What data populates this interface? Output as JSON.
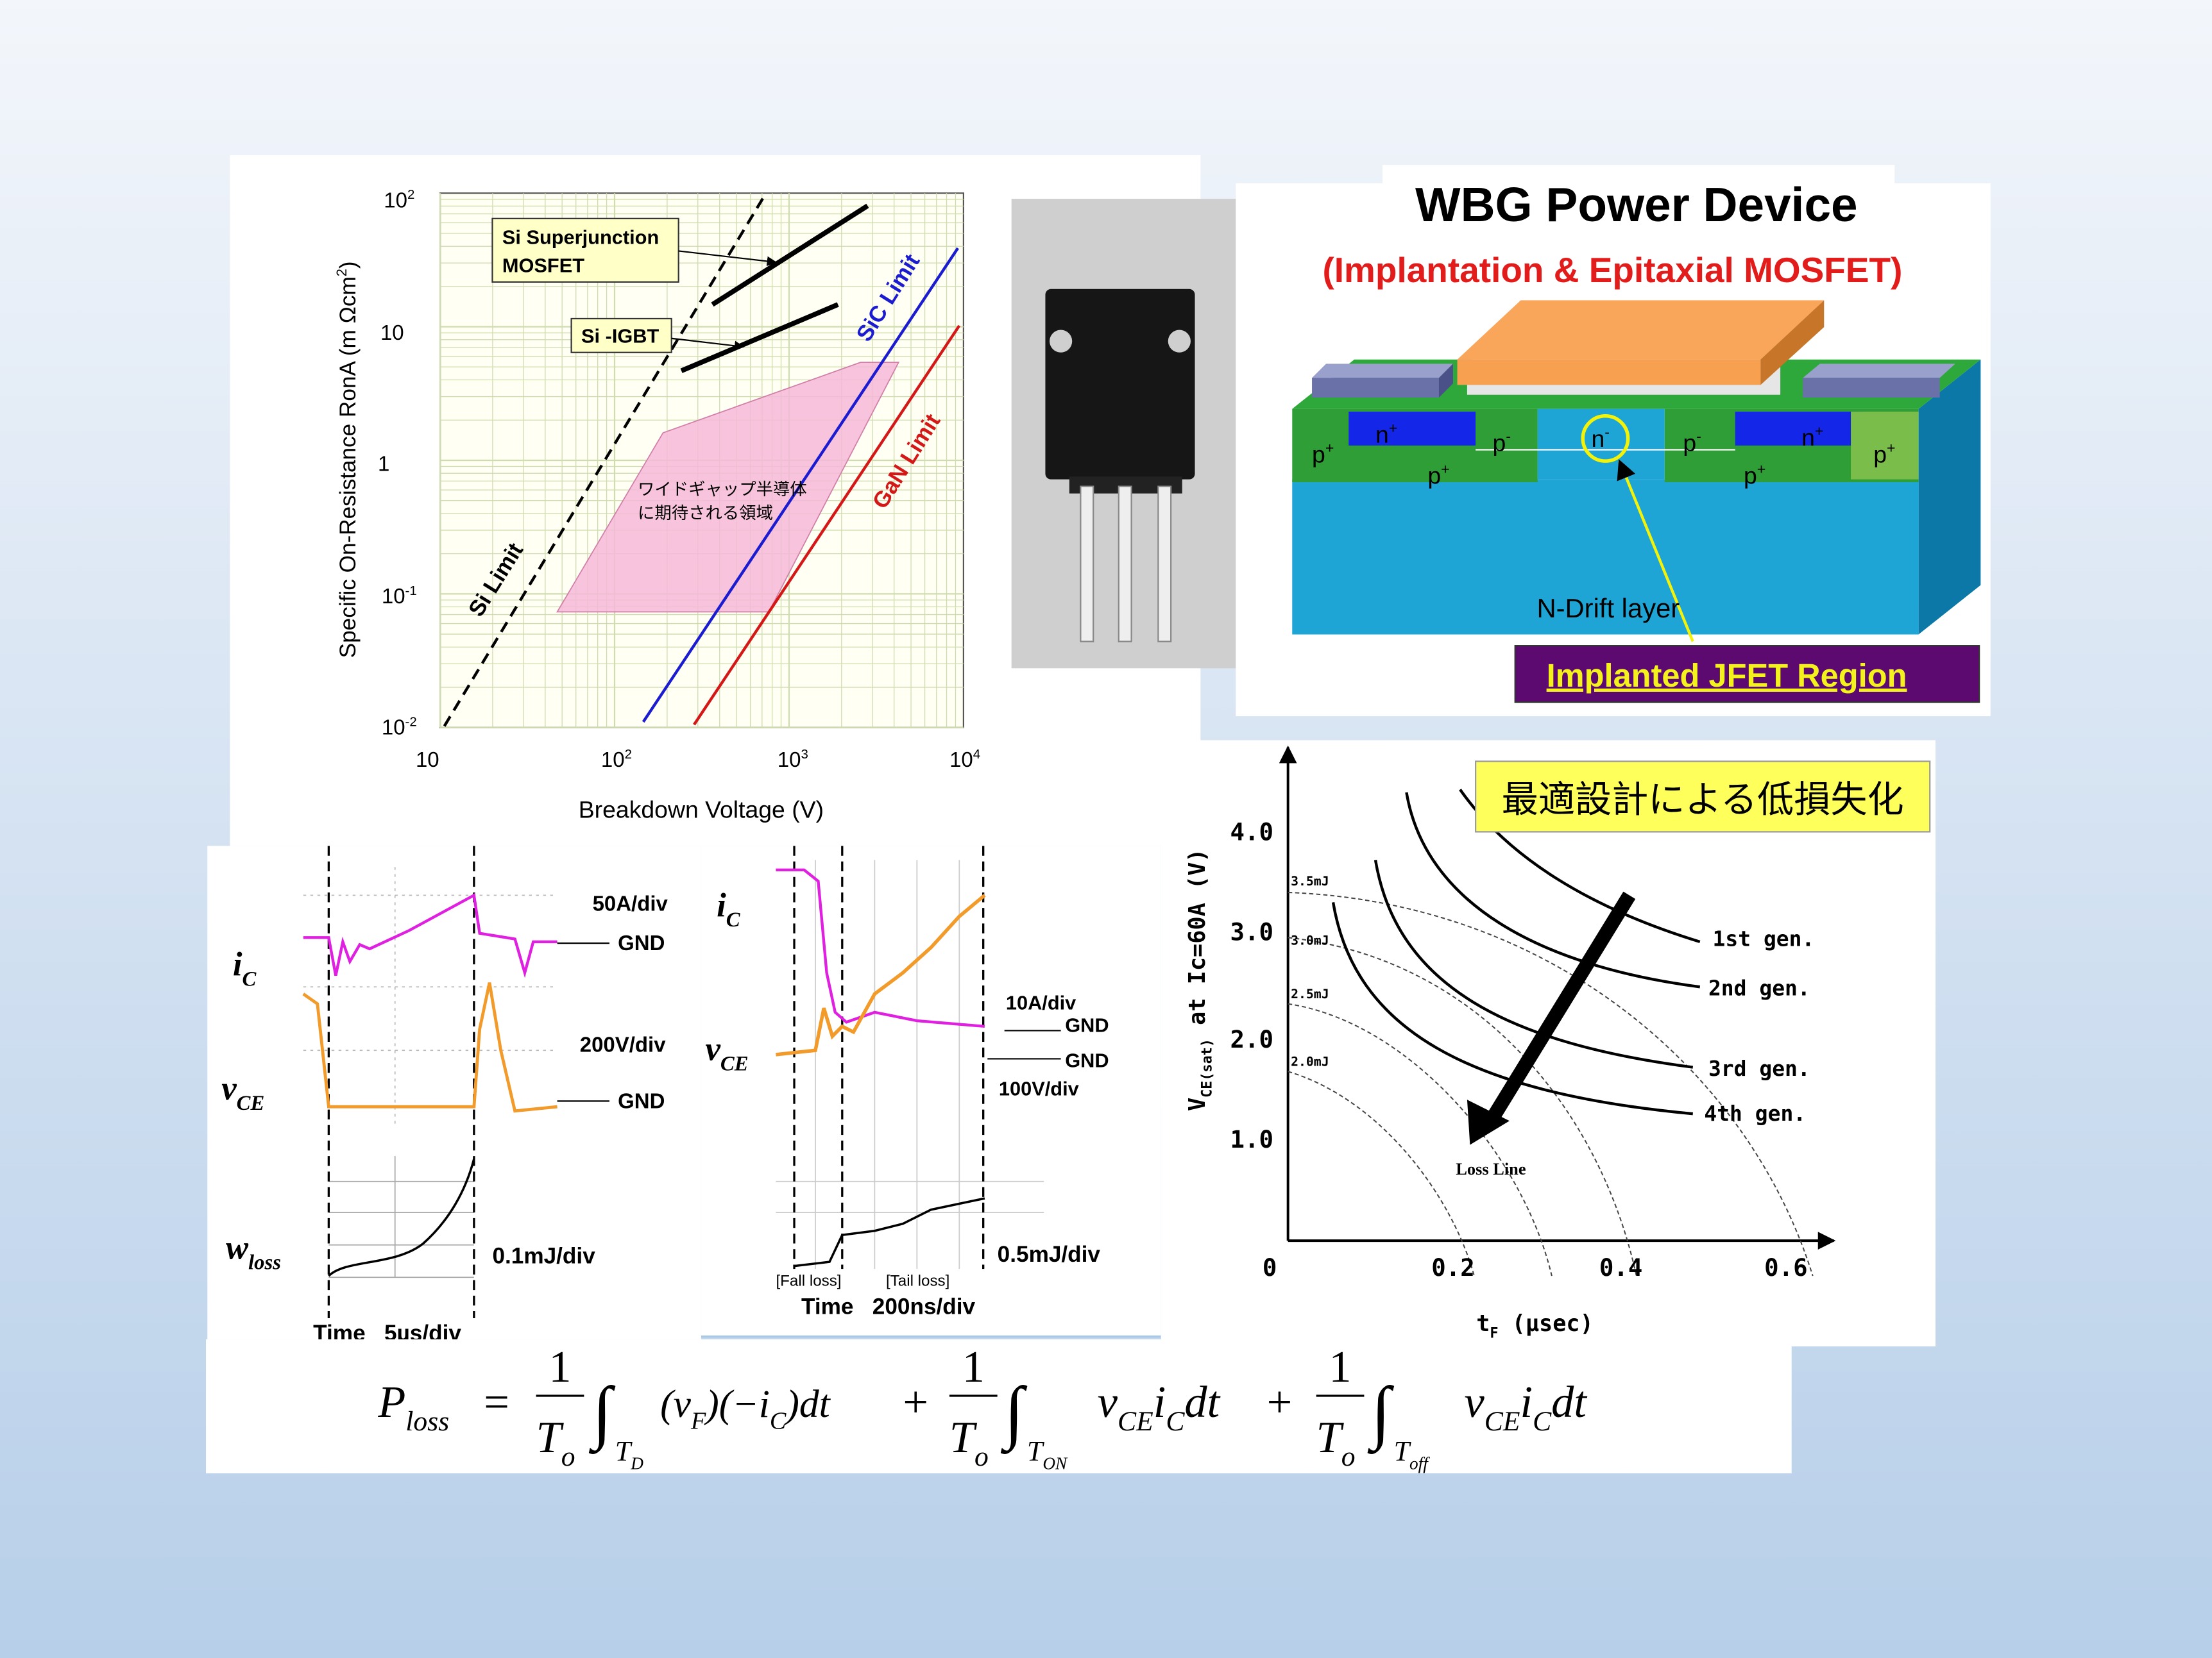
{
  "log_chart": {
    "y_label": [
      {
        "t": "Specific On-Resistance RonA (m Ωcm",
        "sup": "2"
      },
      ")"
    ],
    "x_label": "Breakdown Voltage (V)",
    "y_ticks": [
      {
        "t": "10",
        "sup": "2"
      },
      "10",
      "1",
      {
        "t": "10",
        "sup": "-1"
      },
      {
        "t": "10",
        "sup": "-2"
      }
    ],
    "x_ticks": [
      "10",
      {
        "t": "10",
        "sup": "2"
      },
      {
        "t": "10",
        "sup": "3"
      },
      {
        "t": "10",
        "sup": "4"
      }
    ],
    "sj_label": [
      "Si Superjunction",
      "MOSFET"
    ],
    "igbt_label": "Si -IGBT",
    "sic_label": "SiC Limit",
    "gan_label": "GaN Limit",
    "si_label": "Si Limit",
    "region_label": [
      "ワイドギャップ半導体",
      "に期待される領域"
    ]
  },
  "wbg": {
    "title": "WBG Power Device",
    "subtitle": "(Implantation & Epitaxial MOSFET)",
    "labels": [
      {
        "t": "p",
        "sup": "+"
      },
      {
        "t": "n",
        "sup": "+"
      },
      {
        "t": "p",
        "sup": "-"
      },
      {
        "t": "n",
        "sup": "-"
      },
      {
        "t": "p",
        "sup": "-"
      },
      {
        "t": "n",
        "sup": "+"
      },
      {
        "t": "p",
        "sup": "+"
      },
      {
        "t": "p",
        "sup": "+"
      },
      {
        "t": "p",
        "sup": "+"
      }
    ],
    "drift": "N-Drift layer",
    "jfet": "Implanted JFET Region"
  },
  "waveform_left": {
    "ic": {
      "t": "i",
      "sub": "C"
    },
    "vce": {
      "t": "v",
      "sub": "CE"
    },
    "wloss": {
      "t": "w",
      "sub": "loss"
    },
    "scales": [
      "50A/div",
      "GND",
      "200V/div",
      "GND",
      "0.1mJ/div"
    ],
    "time": "Time   5µs/div"
  },
  "waveform_mid": {
    "ic": {
      "t": "i",
      "sub": "C"
    },
    "vce": {
      "t": "v",
      "sub": "CE"
    },
    "scales": [
      "10A/div",
      "GND",
      "GND",
      "100V/div",
      "0.5mJ/div"
    ],
    "fall": "[Fall loss]",
    "tail": "[Tail loss]",
    "time": "Time   200ns/div"
  },
  "loss_chart": {
    "callout": "最適設計による低損失化",
    "y_label": [
      {
        "t": "V",
        "sub": "CE(sat)"
      },
      " at Ic=60A (V)"
    ],
    "y_ticks": [
      "4.0",
      "3.0",
      "2.0",
      "1.0"
    ],
    "x_ticks": [
      "0",
      "0.2",
      "0.4",
      "0.6"
    ],
    "x_label": [
      {
        "t": "t",
        "sub": "F"
      },
      " (μsec)"
    ],
    "energy": [
      "3.5mJ",
      "3.0mJ",
      "2.5mJ",
      "2.0mJ"
    ],
    "gens": [
      "1st gen.",
      "2nd gen.",
      "3rd gen.",
      "4th gen."
    ],
    "loss_line": "Loss Line"
  },
  "formula": {
    "lhs": {
      "t": "P",
      "sub": "loss"
    },
    "eq": "=",
    "plus": [
      "+",
      "+"
    ],
    "num": [
      "1",
      "1",
      "1"
    ],
    "den": [
      {
        "t": "T",
        "sub": "o"
      },
      {
        "t": "T",
        "sub": "o"
      },
      {
        "t": "T",
        "sub": "o"
      }
    ],
    "int": [
      "∫",
      "∫",
      "∫"
    ],
    "limits": [
      {
        "t": "T",
        "sub": "D"
      },
      {
        "t": "T",
        "sub": "ON"
      },
      {
        "t": "T",
        "sub": "off"
      }
    ],
    "terms": [
      [
        {
          "t": "(v",
          "sub": "F"
        },
        {
          "t": ")(−i",
          "sub": "C"
        },
        ")dt"
      ],
      [
        {
          "t": "v",
          "sub": "CE"
        },
        {
          "t": "i",
          "sub": "C"
        },
        "dt"
      ],
      [
        {
          "t": "v",
          "sub": "CE"
        },
        {
          "t": "i",
          "sub": "C"
        },
        "dt"
      ]
    ]
  }
}
